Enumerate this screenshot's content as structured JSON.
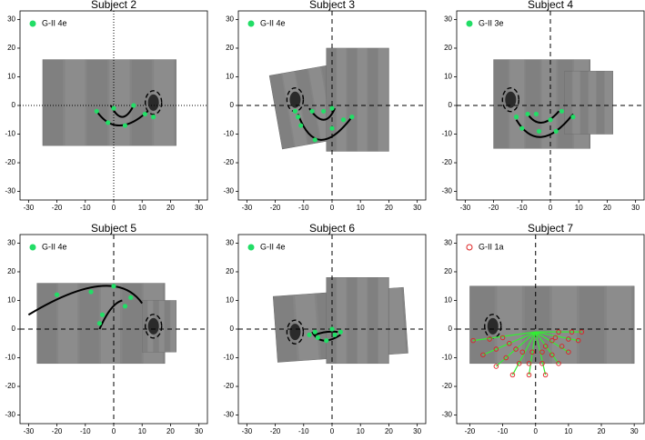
{
  "chart_data": [
    {
      "type": "scatter",
      "title": "Subject 2",
      "legend": "upper left",
      "crosshair": "dotted",
      "xlim": [
        -33,
        33
      ],
      "ylim": [
        -33,
        33
      ],
      "xticks": [
        -30,
        -20,
        -10,
        0,
        10,
        20,
        30
      ],
      "yticks": [
        -30,
        -20,
        -10,
        0,
        10,
        20,
        30
      ],
      "series": [
        {
          "name": "G-II 4e",
          "color": "#22dd66",
          "marker": "filled",
          "x": [
            -6,
            0,
            7,
            -2,
            4,
            11,
            14
          ],
          "y": [
            -2,
            -1,
            0,
            -6,
            -7,
            -3,
            -4
          ]
        }
      ],
      "curves": [
        {
          "color": "#000000",
          "x": [
            -1,
            3,
            7
          ],
          "y": [
            0,
            -4,
            0
          ]
        },
        {
          "color": "#000000",
          "x": [
            -6,
            2,
            12
          ],
          "y": [
            -2,
            -7,
            -2
          ]
        }
      ]
    },
    {
      "type": "scatter",
      "title": "Subject 3",
      "legend": "upper left",
      "crosshair": "dashed",
      "xlim": [
        -33,
        33
      ],
      "ylim": [
        -33,
        33
      ],
      "xticks": [
        -30,
        -20,
        -10,
        0,
        10,
        20,
        30
      ],
      "yticks": [
        -30,
        -20,
        -10,
        0,
        10,
        20,
        30
      ],
      "series": [
        {
          "name": "G-II 4e",
          "color": "#22dd66",
          "marker": "filled",
          "x": [
            -13,
            -12,
            -11,
            -7,
            -3,
            0,
            -6,
            0,
            4,
            7
          ],
          "y": [
            -2,
            -4,
            -7,
            -2,
            -2,
            -1,
            -12,
            -8,
            -5,
            -4
          ]
        }
      ],
      "curves": [
        {
          "color": "#000000",
          "x": [
            -8,
            -3,
            1
          ],
          "y": [
            -1,
            -5,
            -1
          ]
        },
        {
          "color": "#000000",
          "x": [
            -12,
            -4,
            7
          ],
          "y": [
            -3,
            -12,
            -4
          ]
        }
      ]
    },
    {
      "type": "scatter",
      "title": "Subject 4",
      "legend": "upper left",
      "crosshair": "dashed",
      "xlim": [
        -33,
        33
      ],
      "ylim": [
        -33,
        33
      ],
      "xticks": [
        -30,
        -20,
        -10,
        0,
        10,
        20,
        30
      ],
      "yticks": [
        -30,
        -20,
        -10,
        0,
        10,
        20,
        30
      ],
      "series": [
        {
          "name": "G-II 3e",
          "color": "#22dd66",
          "marker": "filled",
          "x": [
            -12,
            -8,
            -5,
            0,
            4,
            8,
            -10,
            -4,
            2
          ],
          "y": [
            -4,
            -3,
            -3,
            -5,
            -2,
            -4,
            -8,
            -9,
            -9
          ]
        }
      ],
      "curves": [
        {
          "color": "#000000",
          "x": [
            -12,
            -3,
            8
          ],
          "y": [
            -5,
            -11,
            -3
          ]
        },
        {
          "color": "#000000",
          "x": [
            -8,
            -3,
            3
          ],
          "y": [
            -3,
            -6,
            -2
          ]
        }
      ]
    },
    {
      "type": "scatter",
      "title": "Subject 5",
      "legend": "upper left",
      "crosshair": "dashed",
      "xlim": [
        -33,
        33
      ],
      "ylim": [
        -33,
        33
      ],
      "xticks": [
        -30,
        -20,
        -10,
        0,
        10,
        20,
        30
      ],
      "yticks": [
        -30,
        -20,
        -10,
        0,
        10,
        20,
        30
      ],
      "series": [
        {
          "name": "G-II 4e",
          "color": "#22dd66",
          "marker": "filled",
          "x": [
            -20,
            -8,
            0,
            6,
            -5,
            -4,
            4
          ],
          "y": [
            12,
            13,
            15,
            11,
            2,
            5,
            8
          ]
        }
      ],
      "curves": [
        {
          "color": "#000000",
          "x": [
            -30,
            -5,
            10
          ],
          "y": [
            5,
            15,
            9
          ]
        },
        {
          "color": "#000000",
          "x": [
            -5,
            -1,
            3
          ],
          "y": [
            0,
            7,
            10
          ]
        }
      ]
    },
    {
      "type": "scatter",
      "title": "Subject 6",
      "legend": "upper left",
      "crosshair": "dashed",
      "xlim": [
        -33,
        33
      ],
      "ylim": [
        -33,
        33
      ],
      "xticks": [
        -30,
        -20,
        -10,
        0,
        10,
        20,
        30
      ],
      "yticks": [
        -30,
        -20,
        -10,
        0,
        10,
        20,
        30
      ],
      "series": [
        {
          "name": "G-II 4e",
          "color": "#22dd66",
          "marker": "filled",
          "x": [
            -8,
            -5,
            -2,
            1,
            3,
            -6,
            0
          ],
          "y": [
            -2,
            -3,
            -4,
            -2,
            -1,
            -1,
            0
          ]
        }
      ],
      "curves": [
        {
          "color": "#000000",
          "x": [
            -7,
            -3,
            3
          ],
          "y": [
            -1,
            -4,
            -2
          ]
        },
        {
          "color": "#000000",
          "x": [
            -6,
            -2,
            2
          ],
          "y": [
            -2,
            -1,
            -1
          ]
        }
      ]
    },
    {
      "type": "scatter",
      "title": "Subject 7",
      "legend": "upper left",
      "crosshair": "dashed",
      "xlim": [
        -24,
        33
      ],
      "ylim": [
        -33,
        33
      ],
      "xticks": [
        -20,
        -10,
        0,
        10,
        20,
        30
      ],
      "yticks": [
        -30,
        -20,
        -10,
        0,
        10,
        20,
        30
      ],
      "series": [
        {
          "name": "G-II 1a",
          "color": "#dd2222",
          "marker": "open",
          "x": [
            -10,
            -14,
            -19,
            -8,
            -12,
            -16,
            -6,
            -9,
            -12,
            -4,
            -5,
            -7,
            -1,
            -2,
            -2,
            2,
            2,
            3,
            3,
            5,
            7,
            5,
            8,
            10,
            6,
            10,
            13,
            7,
            11,
            14
          ],
          "y": [
            -3,
            -3.5,
            -4,
            -5,
            -7,
            -9,
            -7,
            -10,
            -13,
            -8,
            -12,
            -16,
            -8,
            -12,
            -16,
            -8,
            -12,
            -16,
            -6,
            -9,
            -12,
            -4,
            -6,
            -8,
            -3,
            -3.5,
            -4,
            -1,
            -1,
            -1
          ]
        }
      ],
      "curves": [
        {
          "color": "#33ee33",
          "x": [
            0,
            -19
          ],
          "y": [
            -1,
            -4
          ]
        },
        {
          "color": "#33ee33",
          "x": [
            0,
            -16
          ],
          "y": [
            -1,
            -9
          ]
        },
        {
          "color": "#33ee33",
          "x": [
            0,
            -12
          ],
          "y": [
            -1,
            -13
          ]
        },
        {
          "color": "#33ee33",
          "x": [
            0,
            -7
          ],
          "y": [
            -1,
            -16
          ]
        },
        {
          "color": "#33ee33",
          "x": [
            0,
            -2
          ],
          "y": [
            -1,
            -16
          ]
        },
        {
          "color": "#33ee33",
          "x": [
            0,
            3
          ],
          "y": [
            -1,
            -16
          ]
        },
        {
          "color": "#33ee33",
          "x": [
            0,
            7
          ],
          "y": [
            -1,
            -12
          ]
        },
        {
          "color": "#33ee33",
          "x": [
            0,
            10
          ],
          "y": [
            -1,
            -8
          ]
        },
        {
          "color": "#33ee33",
          "x": [
            0,
            13
          ],
          "y": [
            -1,
            -4
          ]
        },
        {
          "color": "#33ee33",
          "x": [
            0,
            14
          ],
          "y": [
            -1,
            -1
          ]
        }
      ]
    }
  ]
}
